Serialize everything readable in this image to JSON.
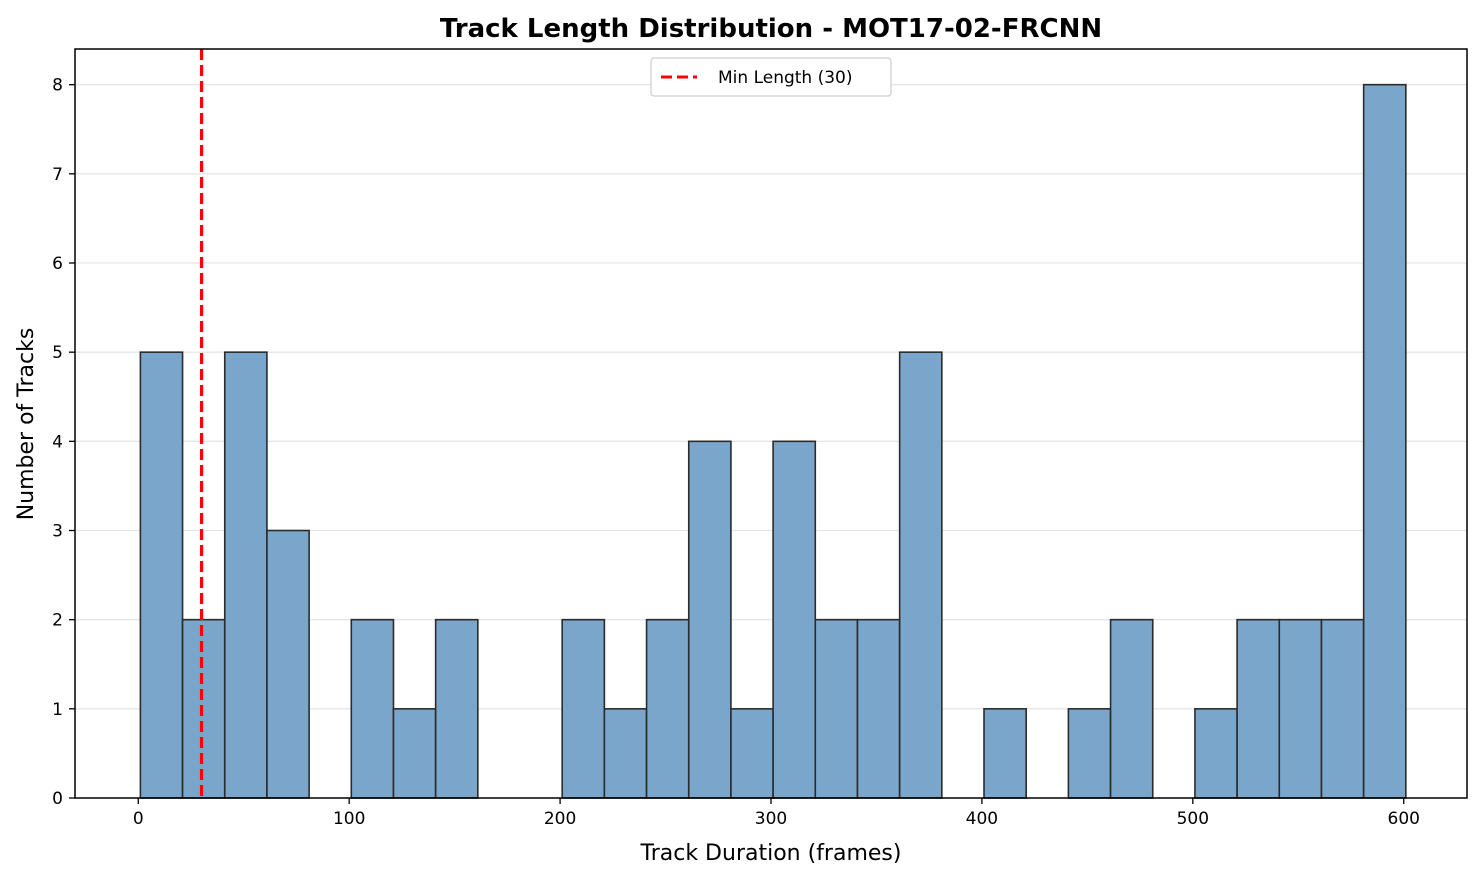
{
  "chart_data": {
    "type": "bar",
    "title": "Track Length Distribution - MOT17-02-FRCNN",
    "xlabel": "Track Duration (frames)",
    "ylabel": "Number of Tracks",
    "xlim": [
      -30,
      630
    ],
    "ylim": [
      0,
      8.4
    ],
    "xticks": [
      0,
      100,
      200,
      300,
      400,
      500,
      600
    ],
    "yticks": [
      0,
      1,
      2,
      3,
      4,
      5,
      6,
      7,
      8
    ],
    "grid": "y",
    "bar_color": "#7ba6cb",
    "edge_color": "#2b2b2b",
    "bins": [
      {
        "x0": 1,
        "x1": 21,
        "count": 5
      },
      {
        "x0": 21,
        "x1": 41,
        "count": 2
      },
      {
        "x0": 41,
        "x1": 61,
        "count": 5
      },
      {
        "x0": 61,
        "x1": 81,
        "count": 3
      },
      {
        "x0": 81,
        "x1": 101,
        "count": 0
      },
      {
        "x0": 101,
        "x1": 121,
        "count": 2
      },
      {
        "x0": 121,
        "x1": 141,
        "count": 1
      },
      {
        "x0": 141,
        "x1": 161,
        "count": 2
      },
      {
        "x0": 161,
        "x1": 181,
        "count": 0
      },
      {
        "x0": 181,
        "x1": 201,
        "count": 0
      },
      {
        "x0": 201,
        "x1": 221,
        "count": 2
      },
      {
        "x0": 221,
        "x1": 241,
        "count": 1
      },
      {
        "x0": 241,
        "x1": 261,
        "count": 2
      },
      {
        "x0": 261,
        "x1": 281,
        "count": 4
      },
      {
        "x0": 281,
        "x1": 301,
        "count": 1
      },
      {
        "x0": 301,
        "x1": 321,
        "count": 4
      },
      {
        "x0": 321,
        "x1": 341,
        "count": 2
      },
      {
        "x0": 341,
        "x1": 361,
        "count": 2
      },
      {
        "x0": 361,
        "x1": 381,
        "count": 5
      },
      {
        "x0": 381,
        "x1": 401,
        "count": 0
      },
      {
        "x0": 401,
        "x1": 421,
        "count": 1
      },
      {
        "x0": 421,
        "x1": 441,
        "count": 0
      },
      {
        "x0": 441,
        "x1": 461,
        "count": 1
      },
      {
        "x0": 461,
        "x1": 481,
        "count": 2
      },
      {
        "x0": 481,
        "x1": 501,
        "count": 0
      },
      {
        "x0": 501,
        "x1": 521,
        "count": 1
      },
      {
        "x0": 521,
        "x1": 541,
        "count": 2
      },
      {
        "x0": 541,
        "x1": 561,
        "count": 2
      },
      {
        "x0": 561,
        "x1": 581,
        "count": 2
      },
      {
        "x0": 581,
        "x1": 601,
        "count": 8
      }
    ],
    "threshold_line": {
      "x": 30,
      "color": "#ff0000",
      "style": "dashed"
    },
    "legend": {
      "placement": "upper center",
      "entries": [
        "Min Length (30)"
      ]
    }
  }
}
